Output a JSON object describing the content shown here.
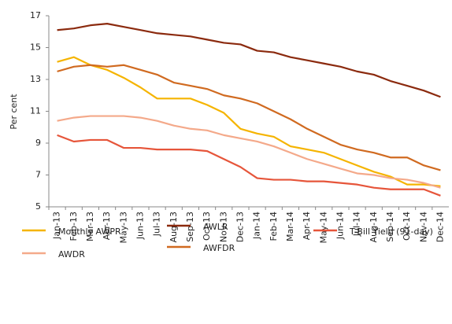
{
  "chart_data": {
    "type": "line",
    "ylabel": "Per cent",
    "categories": [
      "Jan-13",
      "Feb-13",
      "Mar-13",
      "Apr-13",
      "May-13",
      "Jun-13",
      "Jul-13",
      "Aug-13",
      "Sep-13",
      "Oct-13",
      "Nov-13",
      "Dec-13",
      "Jan-14",
      "Feb-14",
      "Mar-14",
      "Apr-14",
      "May-14",
      "Jun-14",
      "Jul-14",
      "Aug-14",
      "Sep-14",
      "Oct-14",
      "Nov-14",
      "Dec-14"
    ],
    "series": [
      {
        "name": "Monthly AWPR",
        "color": "#f5b400",
        "values": [
          14.1,
          14.4,
          13.9,
          13.6,
          13.1,
          12.5,
          11.8,
          11.8,
          11.8,
          11.4,
          10.9,
          9.9,
          9.6,
          9.4,
          8.8,
          8.6,
          8.4,
          8.0,
          7.6,
          7.2,
          6.9,
          6.4,
          6.4,
          6.3
        ]
      },
      {
        "name": "AWDR",
        "color": "#f4a98a",
        "values": [
          10.4,
          10.6,
          10.7,
          10.7,
          10.7,
          10.6,
          10.4,
          10.1,
          9.9,
          9.8,
          9.5,
          9.3,
          9.1,
          8.8,
          8.4,
          8.0,
          7.7,
          7.4,
          7.1,
          7.0,
          6.8,
          6.7,
          6.5,
          6.2
        ]
      },
      {
        "name": "AWLR",
        "color": "#8b2a0e",
        "values": [
          16.1,
          16.2,
          16.4,
          16.5,
          16.3,
          16.1,
          15.9,
          15.8,
          15.7,
          15.5,
          15.3,
          15.2,
          14.8,
          14.7,
          14.4,
          14.2,
          14.0,
          13.8,
          13.5,
          13.3,
          12.9,
          12.6,
          12.3,
          11.9
        ]
      },
      {
        "name": "AWFDR",
        "color": "#d06a20",
        "values": [
          13.5,
          13.8,
          13.9,
          13.8,
          13.9,
          13.6,
          13.3,
          12.8,
          12.6,
          12.4,
          12.0,
          11.8,
          11.5,
          11.0,
          10.5,
          9.9,
          9.4,
          8.9,
          8.6,
          8.4,
          8.1,
          8.1,
          7.6,
          7.3
        ]
      },
      {
        "name": "T-Bill Yield (91-day)",
        "color": "#e6553a",
        "values": [
          9.5,
          9.1,
          9.2,
          9.2,
          8.7,
          8.7,
          8.6,
          8.6,
          8.6,
          8.5,
          8.0,
          7.5,
          6.8,
          6.7,
          6.7,
          6.6,
          6.6,
          6.5,
          6.4,
          6.2,
          6.1,
          6.1,
          6.1,
          5.7
        ]
      }
    ],
    "ylim": [
      5,
      17
    ],
    "yticks": [
      5,
      7,
      9,
      11,
      13,
      15,
      17
    ],
    "grid": false
  }
}
